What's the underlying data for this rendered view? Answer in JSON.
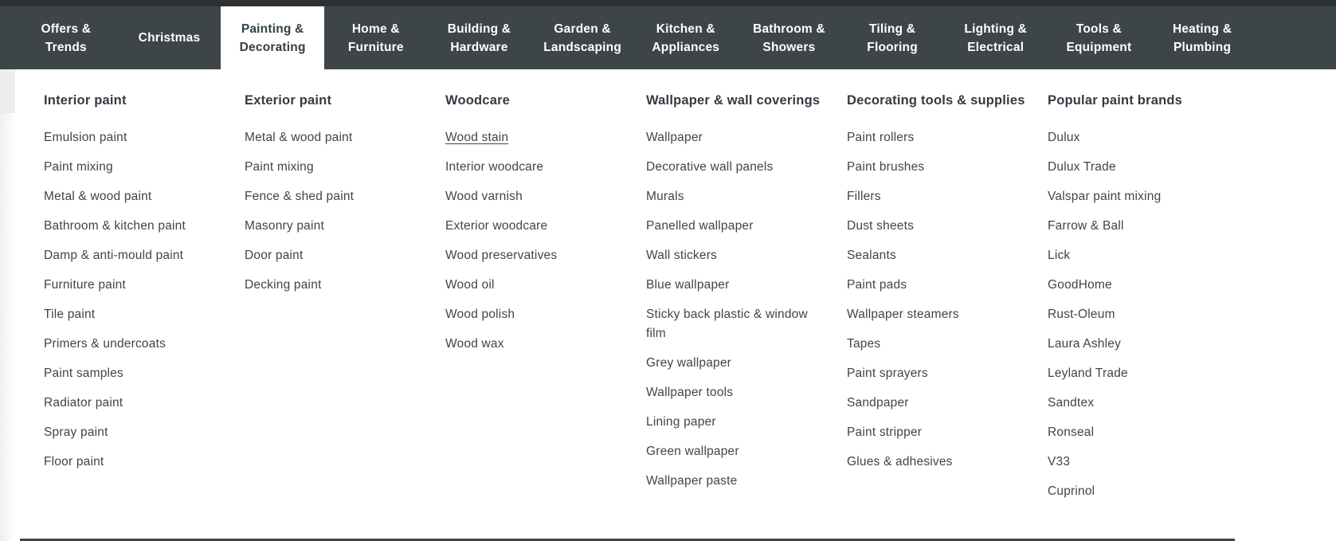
{
  "colors": {
    "navbar_bg": "#3d4549",
    "navbar_top_strip": "#2b3134",
    "active_tab_bg": "#ffffff",
    "nav_text": "#ffffff",
    "active_tab_text": "#333f48",
    "heading_text": "#333b42",
    "link_text": "#3d464c"
  },
  "nav": {
    "tabs": [
      {
        "label": "Offers & Trends",
        "active": false
      },
      {
        "label": "Christmas",
        "active": false
      },
      {
        "label": "Painting & Decorating",
        "active": true
      },
      {
        "label": "Home & Furniture",
        "active": false
      },
      {
        "label": "Building & Hardware",
        "active": false
      },
      {
        "label": "Garden & Landscaping",
        "active": false
      },
      {
        "label": "Kitchen & Appliances",
        "active": false
      },
      {
        "label": "Bathroom & Showers",
        "active": false
      },
      {
        "label": "Tiling & Flooring",
        "active": false
      },
      {
        "label": "Lighting & Electrical",
        "active": false
      },
      {
        "label": "Tools & Equipment",
        "active": false
      },
      {
        "label": "Heating & Plumbing",
        "active": false
      }
    ]
  },
  "menu": {
    "columns": [
      {
        "heading": "Interior paint",
        "items": [
          {
            "label": "Emulsion paint",
            "hovered": false
          },
          {
            "label": "Paint mixing",
            "hovered": false
          },
          {
            "label": "Metal & wood paint",
            "hovered": false
          },
          {
            "label": "Bathroom & kitchen paint",
            "hovered": false
          },
          {
            "label": "Damp & anti-mould paint",
            "hovered": false
          },
          {
            "label": "Furniture paint",
            "hovered": false
          },
          {
            "label": "Tile paint",
            "hovered": false
          },
          {
            "label": "Primers & undercoats",
            "hovered": false
          },
          {
            "label": "Paint samples",
            "hovered": false
          },
          {
            "label": "Radiator paint",
            "hovered": false
          },
          {
            "label": "Spray paint",
            "hovered": false
          },
          {
            "label": "Floor paint",
            "hovered": false
          }
        ]
      },
      {
        "heading": "Exterior paint",
        "items": [
          {
            "label": "Metal & wood paint",
            "hovered": false
          },
          {
            "label": "Paint mixing",
            "hovered": false
          },
          {
            "label": "Fence & shed paint",
            "hovered": false
          },
          {
            "label": "Masonry paint",
            "hovered": false
          },
          {
            "label": "Door paint",
            "hovered": false
          },
          {
            "label": "Decking paint",
            "hovered": false
          }
        ]
      },
      {
        "heading": "Woodcare",
        "items": [
          {
            "label": "Wood stain",
            "hovered": true
          },
          {
            "label": "Interior woodcare",
            "hovered": false
          },
          {
            "label": "Wood varnish",
            "hovered": false
          },
          {
            "label": "Exterior woodcare",
            "hovered": false
          },
          {
            "label": "Wood preservatives",
            "hovered": false
          },
          {
            "label": "Wood oil",
            "hovered": false
          },
          {
            "label": "Wood polish",
            "hovered": false
          },
          {
            "label": "Wood wax",
            "hovered": false
          }
        ]
      },
      {
        "heading": "Wallpaper & wall coverings",
        "items": [
          {
            "label": "Wallpaper",
            "hovered": false
          },
          {
            "label": "Decorative wall panels",
            "hovered": false
          },
          {
            "label": "Murals",
            "hovered": false
          },
          {
            "label": "Panelled wallpaper",
            "hovered": false
          },
          {
            "label": "Wall stickers",
            "hovered": false
          },
          {
            "label": "Blue wallpaper",
            "hovered": false
          },
          {
            "label": "Sticky back plastic & window film",
            "hovered": false
          },
          {
            "label": "Grey wallpaper",
            "hovered": false
          },
          {
            "label": "Wallpaper tools",
            "hovered": false
          },
          {
            "label": "Lining paper",
            "hovered": false
          },
          {
            "label": "Green wallpaper",
            "hovered": false
          },
          {
            "label": "Wallpaper paste",
            "hovered": false
          }
        ]
      },
      {
        "heading": "Decorating tools & supplies",
        "items": [
          {
            "label": "Paint rollers",
            "hovered": false
          },
          {
            "label": "Paint brushes",
            "hovered": false
          },
          {
            "label": "Fillers",
            "hovered": false
          },
          {
            "label": "Dust sheets",
            "hovered": false
          },
          {
            "label": "Sealants",
            "hovered": false
          },
          {
            "label": "Paint pads",
            "hovered": false
          },
          {
            "label": "Wallpaper steamers",
            "hovered": false
          },
          {
            "label": "Tapes",
            "hovered": false
          },
          {
            "label": "Paint sprayers",
            "hovered": false
          },
          {
            "label": "Sandpaper",
            "hovered": false
          },
          {
            "label": "Paint stripper",
            "hovered": false
          },
          {
            "label": "Glues & adhesives",
            "hovered": false
          }
        ]
      },
      {
        "heading": "Popular paint brands",
        "items": [
          {
            "label": "Dulux",
            "hovered": false
          },
          {
            "label": "Dulux Trade",
            "hovered": false
          },
          {
            "label": "Valspar paint mixing",
            "hovered": false
          },
          {
            "label": "Farrow & Ball",
            "hovered": false
          },
          {
            "label": "Lick",
            "hovered": false
          },
          {
            "label": "GoodHome",
            "hovered": false
          },
          {
            "label": "Rust-Oleum",
            "hovered": false
          },
          {
            "label": "Laura Ashley",
            "hovered": false
          },
          {
            "label": "Leyland Trade",
            "hovered": false
          },
          {
            "label": "Sandtex",
            "hovered": false
          },
          {
            "label": "Ronseal",
            "hovered": false
          },
          {
            "label": "V33",
            "hovered": false
          },
          {
            "label": "Cuprinol",
            "hovered": false
          }
        ]
      }
    ]
  }
}
